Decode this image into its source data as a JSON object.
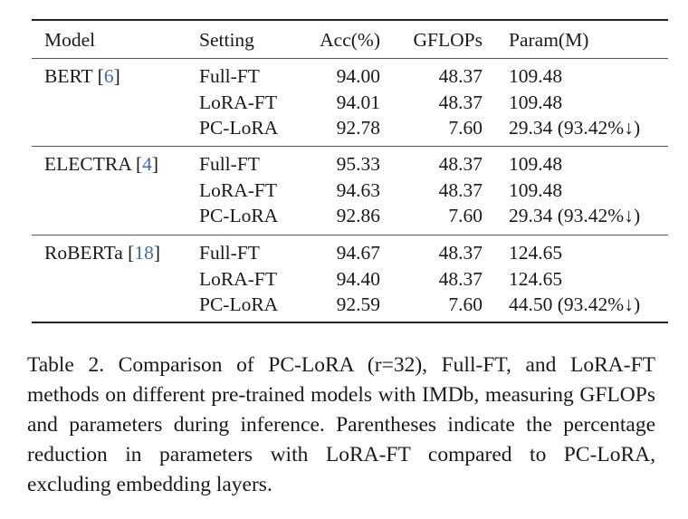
{
  "table": {
    "headers": [
      "Model",
      "Setting",
      "Acc(%)",
      "GFLOPs",
      "Param(M)"
    ],
    "groups": [
      {
        "model": "BERT",
        "cite": "6",
        "rows": [
          {
            "setting": "Full-FT",
            "acc": "94.00",
            "gflops": "48.37",
            "param": "109.48"
          },
          {
            "setting": "LoRA-FT",
            "acc": "94.01",
            "gflops": "48.37",
            "param": "109.48"
          },
          {
            "setting": "PC-LoRA",
            "acc": "92.78",
            "gflops": "7.60",
            "param": "29.34 (93.42%↓)"
          }
        ]
      },
      {
        "model": "ELECTRA",
        "cite": "4",
        "rows": [
          {
            "setting": "Full-FT",
            "acc": "95.33",
            "gflops": "48.37",
            "param": "109.48"
          },
          {
            "setting": "LoRA-FT",
            "acc": "94.63",
            "gflops": "48.37",
            "param": "109.48"
          },
          {
            "setting": "PC-LoRA",
            "acc": "92.86",
            "gflops": "7.60",
            "param": "29.34 (93.42%↓)"
          }
        ]
      },
      {
        "model": "RoBERTa",
        "cite": "18",
        "rows": [
          {
            "setting": "Full-FT",
            "acc": "94.67",
            "gflops": "48.37",
            "param": "124.65"
          },
          {
            "setting": "LoRA-FT",
            "acc": "94.40",
            "gflops": "48.37",
            "param": "124.65"
          },
          {
            "setting": "PC-LoRA",
            "acc": "92.59",
            "gflops": "7.60",
            "param": "44.50 (93.42%↓)"
          }
        ]
      }
    ]
  },
  "caption": "Table 2. Comparison of PC-LoRA (r=32), Full-FT, and LoRA-FT methods on different pre-trained models with IMDb, measuring GFLOPs and parameters during inference. Parentheses indicate the percentage reduction in parameters with LoRA-FT compared to PC-LoRA, excluding embedding layers.",
  "colors": {
    "citation": "#3a70a8"
  }
}
